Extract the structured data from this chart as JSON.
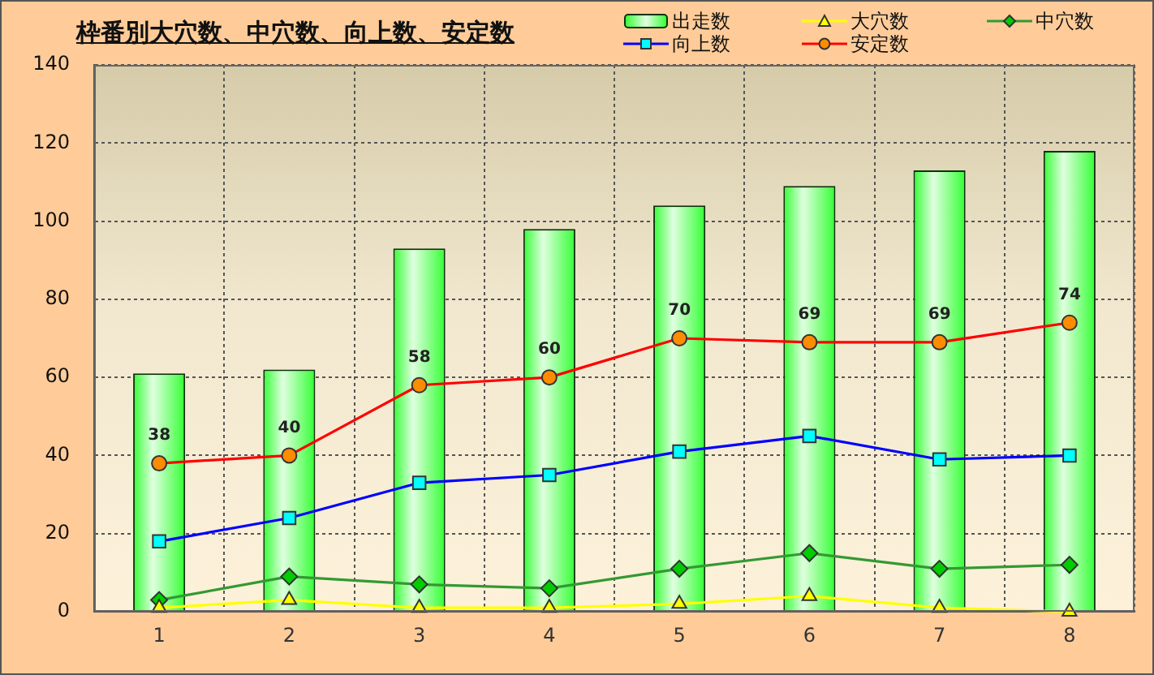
{
  "chart_data": {
    "type": "bar",
    "title": "枠番別大穴数、中穴数、向上数、安定数",
    "categories": [
      "1",
      "2",
      "3",
      "4",
      "5",
      "6",
      "7",
      "8"
    ],
    "series": [
      {
        "name": "出走数",
        "color": "#33ff33",
        "values": [
          61,
          62,
          93,
          98,
          104,
          109,
          113,
          118
        ]
      },
      {
        "name": "大穴数",
        "type": "line",
        "color": "#ffff00",
        "marker": "triangle",
        "values": [
          1,
          3,
          1,
          1,
          2,
          4,
          1,
          0
        ]
      },
      {
        "name": "中穴数",
        "type": "line",
        "color": "#339933",
        "colors": [
          "#00cc00",
          "#00cc00",
          "#00cc00",
          "#00cc00",
          "#00cc00",
          "#00cc00",
          "#00cc00",
          "#00cc00"
        ],
        "marker": "diamond",
        "values": [
          3,
          9,
          7,
          6,
          11,
          15,
          11,
          12
        ]
      },
      {
        "name": "向上数",
        "type": "line",
        "color": "#0000ff",
        "colors": [
          "#00ffff",
          "#00ffff",
          "#00ffff",
          "#00ffff",
          "#00ffff",
          "#00ffff",
          "#00ffff",
          "#00ffff"
        ],
        "marker": "square",
        "values": [
          18,
          24,
          33,
          35,
          41,
          45,
          39,
          40
        ]
      },
      {
        "name": "安定数",
        "type": "line",
        "color": "#ff0000",
        "colors": [
          "#ff8c00",
          "#ff8c00",
          "#ff8c00",
          "#ff8c00",
          "#ff8c00",
          "#ff8c00",
          "#ff8c00",
          "#ff8c00"
        ],
        "marker": "circle",
        "values": [
          38,
          40,
          58,
          60,
          70,
          69,
          69,
          74
        ],
        "value_labels": [
          "38",
          "40",
          "58",
          "60",
          "70",
          "69",
          "69",
          "74"
        ]
      }
    ],
    "ylim": [
      0,
      140
    ],
    "yticks": [
      0,
      20,
      40,
      60,
      80,
      100,
      120,
      140
    ],
    "grid": true,
    "legend": "top right"
  }
}
